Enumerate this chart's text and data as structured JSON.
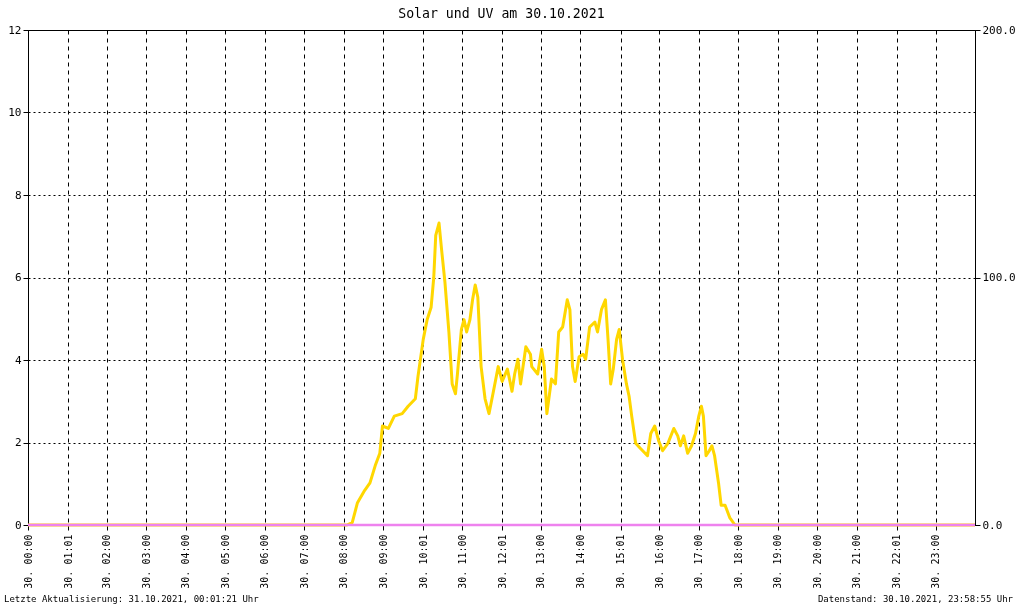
{
  "chart_data": {
    "type": "line",
    "title": "Solar und UV am 30.10.2021",
    "xlim": [
      "2021-10-30T00:00",
      "2021-10-31T00:00"
    ],
    "xticks": [
      {
        "value": "2021-10-30T00:00",
        "label": "30. 00:00"
      },
      {
        "value": "2021-10-30T01:01",
        "label": "30. 01:01"
      },
      {
        "value": "2021-10-30T02:00",
        "label": "30. 02:00"
      },
      {
        "value": "2021-10-30T03:00",
        "label": "30. 03:00"
      },
      {
        "value": "2021-10-30T04:00",
        "label": "30. 04:00"
      },
      {
        "value": "2021-10-30T05:00",
        "label": "30. 05:00"
      },
      {
        "value": "2021-10-30T06:00",
        "label": "30. 06:00"
      },
      {
        "value": "2021-10-30T07:00",
        "label": "30. 07:00"
      },
      {
        "value": "2021-10-30T08:00",
        "label": "30. 08:00"
      },
      {
        "value": "2021-10-30T09:00",
        "label": "30. 09:00"
      },
      {
        "value": "2021-10-30T10:01",
        "label": "30. 10:01"
      },
      {
        "value": "2021-10-30T11:00",
        "label": "30. 11:00"
      },
      {
        "value": "2021-10-30T12:01",
        "label": "30. 12:01"
      },
      {
        "value": "2021-10-30T13:00",
        "label": "30. 13:00"
      },
      {
        "value": "2021-10-30T14:00",
        "label": "30. 14:00"
      },
      {
        "value": "2021-10-30T15:01",
        "label": "30. 15:01"
      },
      {
        "value": "2021-10-30T16:00",
        "label": "30. 16:00"
      },
      {
        "value": "2021-10-30T17:00",
        "label": "30. 17:00"
      },
      {
        "value": "2021-10-30T18:00",
        "label": "30. 18:00"
      },
      {
        "value": "2021-10-30T19:00",
        "label": "30. 19:00"
      },
      {
        "value": "2021-10-30T20:00",
        "label": "30. 20:00"
      },
      {
        "value": "2021-10-30T21:00",
        "label": "30. 21:00"
      },
      {
        "value": "2021-10-30T22:01",
        "label": "30. 22:01"
      },
      {
        "value": "2021-10-30T23:00",
        "label": "30. 23:00"
      }
    ],
    "ylim": [
      0,
      12
    ],
    "yticks": [
      0,
      2,
      4,
      6,
      8,
      10,
      12
    ],
    "y2lim": [
      0,
      200
    ],
    "y2ticks": [
      {
        "value": 0,
        "label": "0.0"
      },
      {
        "value": 100,
        "label": "100.0"
      },
      {
        "value": 200,
        "label": "200.0"
      }
    ],
    "grid": true,
    "series": [
      {
        "color": "#ffd700",
        "axis": "y2",
        "x": [
          "2021-10-30T00:00",
          "2021-10-30T08:05",
          "2021-10-30T08:13",
          "2021-10-30T08:21",
          "2021-10-30T08:32",
          "2021-10-30T08:40",
          "2021-10-30T08:48",
          "2021-10-30T08:55",
          "2021-10-30T08:59",
          "2021-10-30T09:08",
          "2021-10-30T09:17",
          "2021-10-30T09:29",
          "2021-10-30T09:38",
          "2021-10-30T09:49",
          "2021-10-30T09:53",
          "2021-10-30T10:01",
          "2021-10-30T10:07",
          "2021-10-30T10:13",
          "2021-10-30T10:17",
          "2021-10-30T10:20",
          "2021-10-30T10:25",
          "2021-10-30T10:29",
          "2021-10-30T10:34",
          "2021-10-30T10:40",
          "2021-10-30T10:45",
          "2021-10-30T10:50",
          "2021-10-30T10:53",
          "2021-10-30T10:59",
          "2021-10-30T11:03",
          "2021-10-30T11:07",
          "2021-10-30T11:12",
          "2021-10-30T11:16",
          "2021-10-30T11:20",
          "2021-10-30T11:24",
          "2021-10-30T11:29",
          "2021-10-30T11:35",
          "2021-10-30T11:41",
          "2021-10-30T11:47",
          "2021-10-30T11:55",
          "2021-10-30T12:01",
          "2021-10-30T12:09",
          "2021-10-30T12:16",
          "2021-10-30T12:20",
          "2021-10-30T12:25",
          "2021-10-30T12:29",
          "2021-10-30T12:37",
          "2021-10-30T12:44",
          "2021-10-30T12:46",
          "2021-10-30T12:55",
          "2021-10-30T13:01",
          "2021-10-30T13:05",
          "2021-10-30T13:09",
          "2021-10-30T13:16",
          "2021-10-30T13:22",
          "2021-10-30T13:27",
          "2021-10-30T13:33",
          "2021-10-30T13:40",
          "2021-10-30T13:44",
          "2021-10-30T13:48",
          "2021-10-30T13:52",
          "2021-10-30T13:58",
          "2021-10-30T14:04",
          "2021-10-30T14:08",
          "2021-10-30T14:14",
          "2021-10-30T14:22",
          "2021-10-30T14:26",
          "2021-10-30T14:32",
          "2021-10-30T14:38",
          "2021-10-30T14:42",
          "2021-10-30T14:46",
          "2021-10-30T14:50",
          "2021-10-30T14:55",
          "2021-10-30T14:59",
          "2021-10-30T15:04",
          "2021-10-30T15:10",
          "2021-10-30T15:14",
          "2021-10-30T15:18",
          "2021-10-30T15:24",
          "2021-10-30T15:31",
          "2021-10-30T15:42",
          "2021-10-30T15:47",
          "2021-10-30T15:53",
          "2021-10-30T15:59",
          "2021-10-30T16:05",
          "2021-10-30T16:13",
          "2021-10-30T16:22",
          "2021-10-30T16:28",
          "2021-10-30T16:32",
          "2021-10-30T16:37",
          "2021-10-30T16:43",
          "2021-10-30T16:49",
          "2021-10-30T16:55",
          "2021-10-30T17:00",
          "2021-10-30T17:04",
          "2021-10-30T17:07",
          "2021-10-30T17:11",
          "2021-10-30T17:16",
          "2021-10-30T17:20",
          "2021-10-30T17:24",
          "2021-10-30T17:30",
          "2021-10-30T17:34",
          "2021-10-30T17:40",
          "2021-10-30T17:47",
          "2021-10-30T17:55",
          "2021-10-31T00:00"
        ],
        "values": [
          0,
          0,
          1,
          9,
          14,
          17,
          24,
          29,
          40,
          39,
          44,
          45,
          48,
          51,
          60,
          75,
          83,
          88,
          100,
          117,
          122,
          111,
          98,
          78,
          57,
          53,
          61,
          79,
          83,
          78,
          83,
          91,
          97,
          92,
          64,
          51,
          45,
          53,
          64,
          58,
          63,
          54,
          61,
          67,
          57,
          72,
          69,
          64,
          61,
          71,
          64,
          45,
          59,
          57,
          78,
          80,
          91,
          87,
          64,
          58,
          68,
          69,
          67,
          80,
          82,
          78,
          87,
          91,
          75,
          57,
          63,
          75,
          79,
          67,
          57,
          52,
          44,
          33,
          31,
          28,
          37,
          40,
          34,
          30,
          33,
          39,
          36,
          32,
          36,
          29,
          32,
          37,
          44,
          48,
          44,
          28,
          30,
          32,
          28,
          17,
          8,
          8,
          3,
          0,
          0
        ]
      },
      {
        "color": "#ee82ee",
        "x": [
          "2021-10-30T00:00",
          "2021-10-31T00:00"
        ],
        "values": [
          0,
          0
        ]
      }
    ],
    "annotations": [
      "Letzte Aktualisierung: 31.10.2021, 00:01:21 Uhr",
      "Datenstand: 30.10.2021, 23:58:55 Uhr"
    ]
  }
}
